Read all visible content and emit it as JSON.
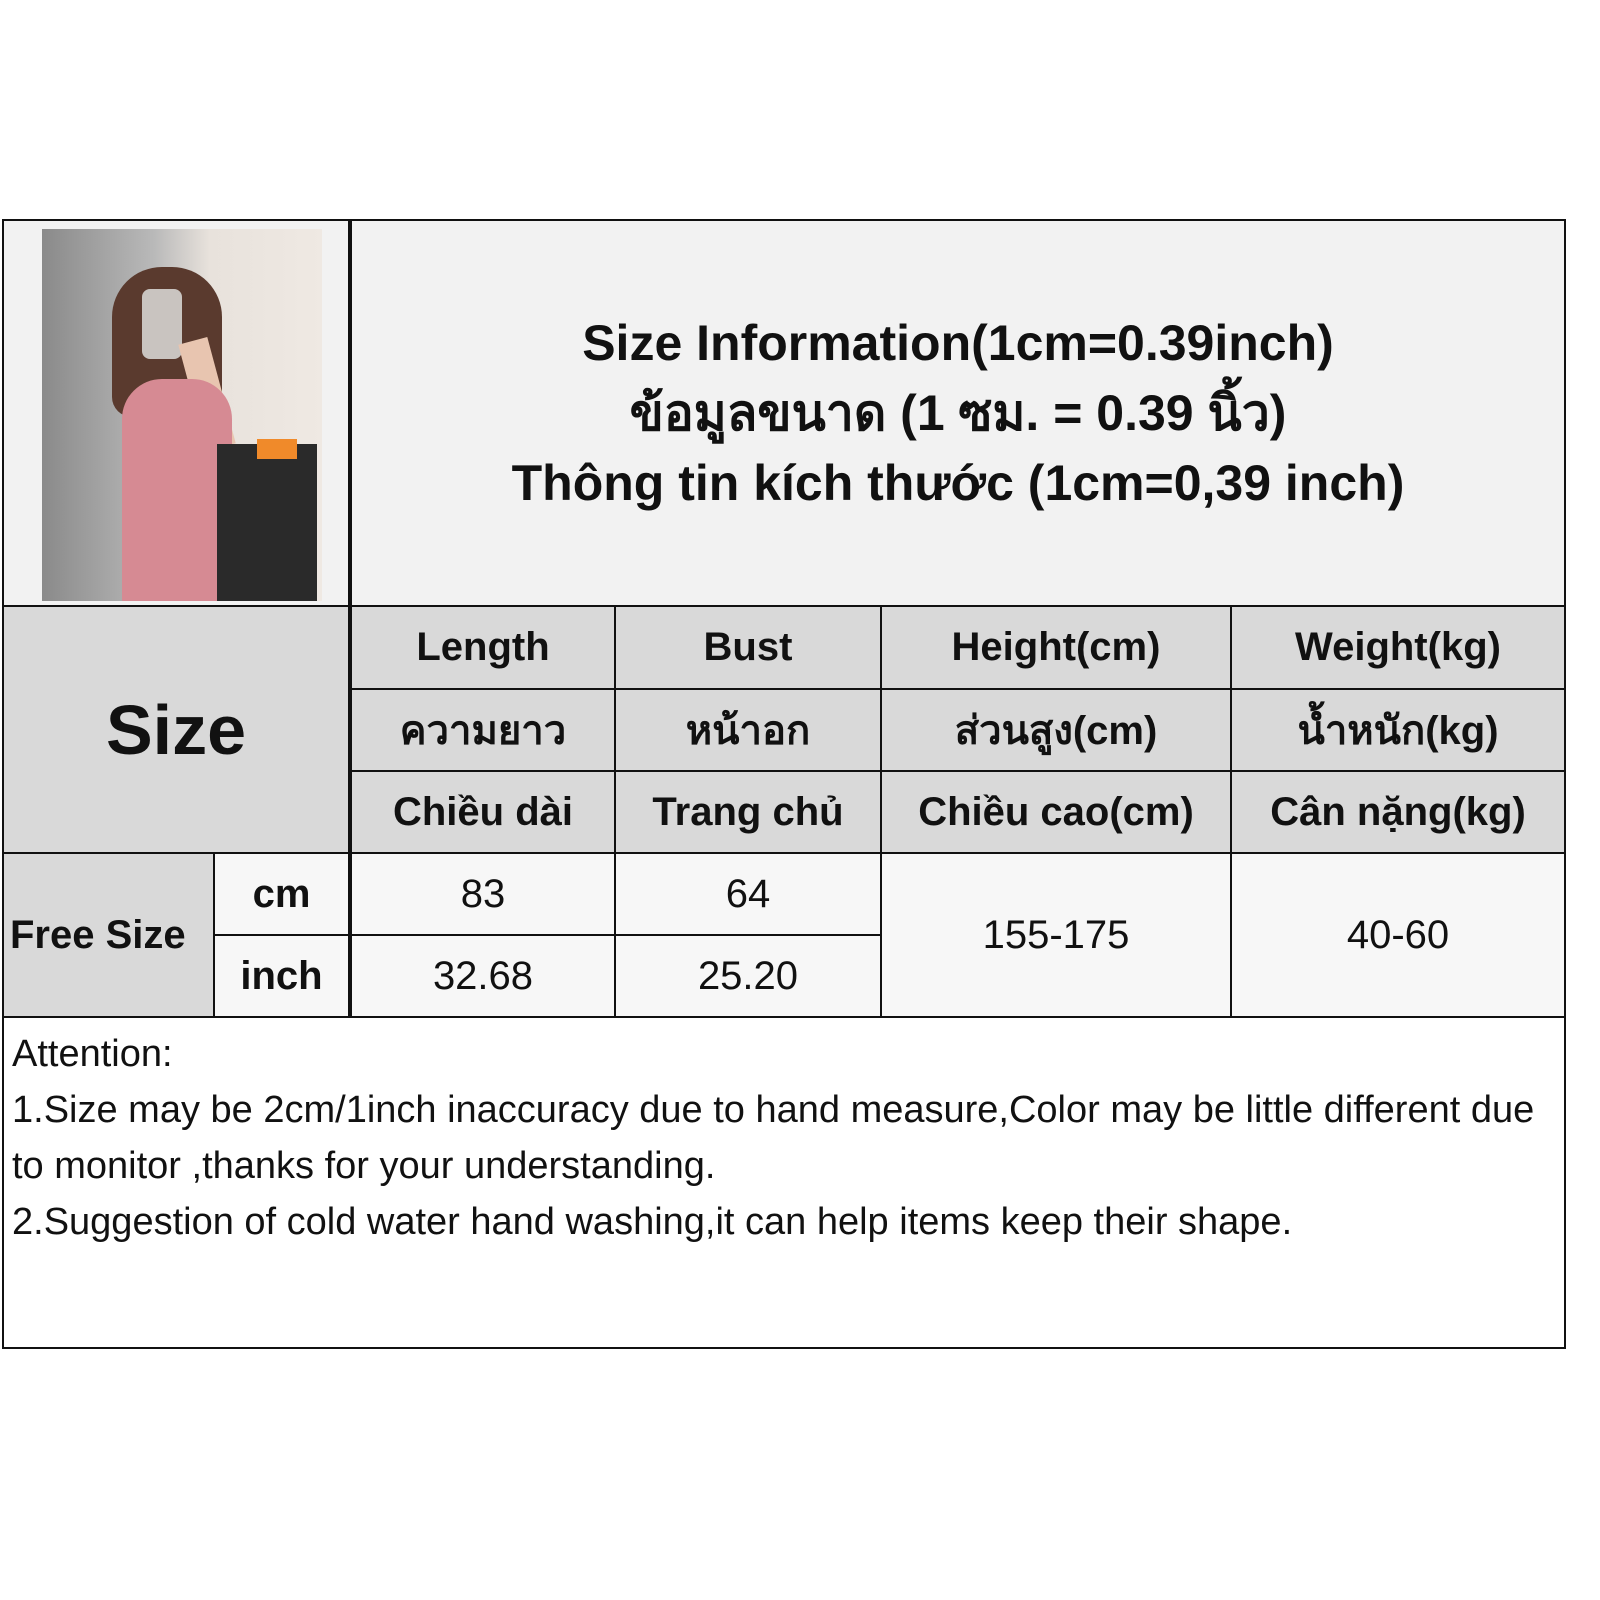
{
  "title": {
    "en": "Size Information(1cm=0.39inch)",
    "th": "ข้อมูลขนาด (1 ซม. = 0.39 นิ้ว)",
    "vi": "Thông tin kích thước (1cm=0,39 inch)"
  },
  "size_label": "Size",
  "columns": [
    {
      "en": "Length",
      "th": "ความยาว",
      "vi": "Chiều dài"
    },
    {
      "en": "Bust",
      "th": "หน้าอก",
      "vi": "Trang chủ"
    },
    {
      "en": "Height(cm)",
      "th": "ส่วนสูง(cm)",
      "vi": "Chiều cao(cm)"
    },
    {
      "en": "Weight(kg)",
      "th": "น้ำหนัก(kg)",
      "vi": "Cân nặng(kg)"
    }
  ],
  "row": {
    "size": "Free Size",
    "cm_label": "cm",
    "inch_label": "inch",
    "length_cm": "83",
    "bust_cm": "64",
    "length_inch": "32.68",
    "bust_inch": "25.20",
    "height": "155-175",
    "weight": "40-60"
  },
  "notes": {
    "heading": "Attention:",
    "line1": "1.Size may be 2cm/1inch inaccuracy due to hand measure,Color may be little different due to monitor ,thanks for your understanding.",
    "line2": "2.Suggestion of cold water hand washing,it can help items keep their shape."
  },
  "colors": {
    "header_bg": "#d9d9d9",
    "dress": "#d68a93"
  }
}
